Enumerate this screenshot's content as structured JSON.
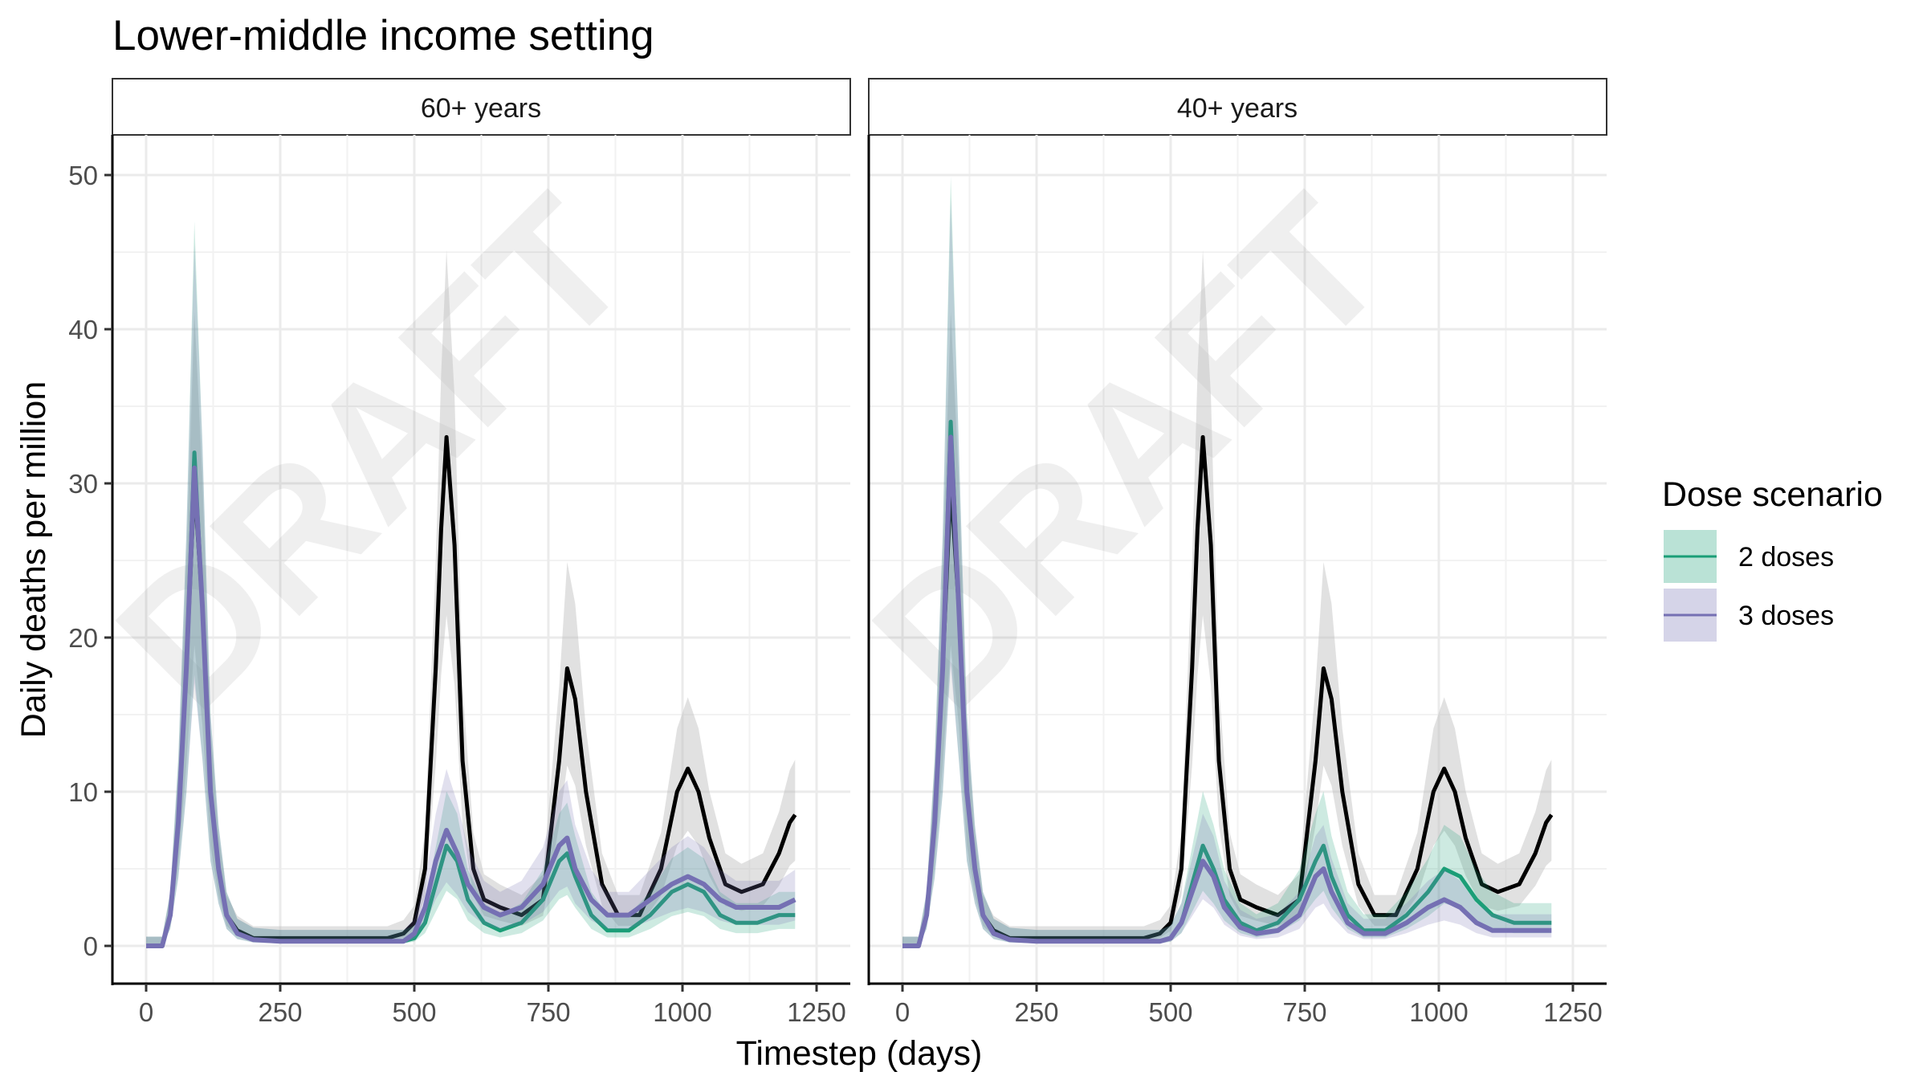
{
  "figure": {
    "title": "Lower-middle income setting",
    "watermark": "DRAFT",
    "colors": {
      "baseline": "#000000",
      "baseline_band": "#bdbdbd",
      "two_doses": "#1b9e77",
      "three_doses": "#7570b3"
    }
  },
  "legend": {
    "title": "Dose scenario",
    "items": [
      {
        "label": "2 doses",
        "color": "#1b9e77"
      },
      {
        "label": "3 doses",
        "color": "#7570b3"
      }
    ]
  },
  "chart_data": {
    "type": "line",
    "title": "Lower-middle income setting",
    "xlabel": "Timestep (days)",
    "ylabel": "Daily deaths per million",
    "xlim": [
      0,
      1250
    ],
    "ylim": [
      0,
      50
    ],
    "x_ticks": [
      0,
      250,
      500,
      750,
      1000,
      1250
    ],
    "y_ticks": [
      0,
      10,
      20,
      30,
      40,
      50
    ],
    "grid": true,
    "legend_position": "right",
    "panels": [
      {
        "label": "60+ years",
        "series": [
          {
            "key": "baseline",
            "x": [
              0,
              30,
              45,
              60,
              75,
              90,
              105,
              120,
              135,
              150,
              170,
              200,
              250,
              300,
              350,
              400,
              450,
              480,
              500,
              520,
              540,
              550,
              560,
              575,
              590,
              610,
              630,
              660,
              700,
              740,
              770,
              785,
              800,
              820,
              850,
              880,
              920,
              960,
              990,
              1010,
              1030,
              1050,
              1080,
              1110,
              1150,
              1180,
              1200,
              1210
            ],
            "y": [
              0,
              0,
              2,
              8,
              18,
              30,
              22,
              10,
              5,
              2,
              1,
              0.5,
              0.5,
              0.5,
              0.5,
              0.5,
              0.5,
              0.8,
              1.5,
              5,
              18,
              27,
              33,
              26,
              12,
              5,
              3,
              2.5,
              2,
              3,
              12,
              18,
              16,
              10,
              4,
              2,
              2,
              5,
              10,
              11.5,
              10,
              7,
              4,
              3.5,
              4,
              6,
              8,
              8.5
            ]
          },
          {
            "key": "two_doses",
            "x": [
              0,
              30,
              45,
              60,
              75,
              90,
              105,
              120,
              135,
              150,
              170,
              200,
              250,
              300,
              350,
              400,
              450,
              480,
              500,
              520,
              540,
              560,
              580,
              600,
              630,
              660,
              700,
              740,
              770,
              785,
              800,
              830,
              860,
              900,
              940,
              980,
              1010,
              1040,
              1070,
              1100,
              1140,
              1180,
              1210
            ],
            "y": [
              0,
              0,
              2,
              8,
              18,
              32,
              22,
              10,
              5,
              2,
              0.8,
              0.4,
              0.3,
              0.3,
              0.3,
              0.3,
              0.3,
              0.3,
              0.5,
              1.5,
              4,
              6.5,
              5.5,
              3,
              1.5,
              1,
              1.5,
              3,
              5.5,
              6,
              4.5,
              2,
              1,
              1,
              2,
              3.5,
              4,
              3.5,
              2,
              1.5,
              1.5,
              2,
              2
            ]
          },
          {
            "key": "three_doses",
            "x": [
              0,
              30,
              45,
              60,
              75,
              90,
              105,
              120,
              135,
              150,
              170,
              200,
              250,
              300,
              350,
              400,
              450,
              480,
              500,
              520,
              540,
              560,
              580,
              600,
              630,
              660,
              700,
              740,
              770,
              785,
              800,
              830,
              860,
              900,
              940,
              980,
              1010,
              1040,
              1070,
              1100,
              1140,
              1180,
              1210
            ],
            "y": [
              0,
              0,
              2,
              8,
              18,
              31,
              22,
              10,
              5,
              2,
              0.8,
              0.4,
              0.3,
              0.3,
              0.3,
              0.3,
              0.3,
              0.3,
              0.8,
              2.5,
              5.5,
              7.5,
              6,
              4,
              2.5,
              2,
              2.5,
              4,
              6.5,
              7,
              5,
              3,
              2,
              2,
              3,
              4,
              4.5,
              4,
              3,
              2.5,
              2.5,
              2.5,
              3
            ]
          }
        ]
      },
      {
        "label": "40+ years",
        "series": [
          {
            "key": "baseline",
            "x": [
              0,
              30,
              45,
              60,
              75,
              90,
              105,
              120,
              135,
              150,
              170,
              200,
              250,
              300,
              350,
              400,
              450,
              480,
              500,
              520,
              540,
              550,
              560,
              575,
              590,
              610,
              630,
              660,
              700,
              740,
              770,
              785,
              800,
              820,
              850,
              880,
              920,
              960,
              990,
              1010,
              1030,
              1050,
              1080,
              1110,
              1150,
              1180,
              1200,
              1210
            ],
            "y": [
              0,
              0,
              2,
              8,
              18,
              30,
              22,
              10,
              5,
              2,
              1,
              0.5,
              0.5,
              0.5,
              0.5,
              0.5,
              0.5,
              0.8,
              1.5,
              5,
              18,
              27,
              33,
              26,
              12,
              5,
              3,
              2.5,
              2,
              3,
              12,
              18,
              16,
              10,
              4,
              2,
              2,
              5,
              10,
              11.5,
              10,
              7,
              4,
              3.5,
              4,
              6,
              8,
              8.5
            ]
          },
          {
            "key": "two_doses",
            "x": [
              0,
              30,
              45,
              60,
              75,
              90,
              105,
              120,
              135,
              150,
              170,
              200,
              250,
              300,
              350,
              400,
              450,
              480,
              500,
              520,
              540,
              560,
              580,
              600,
              630,
              660,
              700,
              740,
              770,
              785,
              800,
              830,
              860,
              900,
              940,
              980,
              1010,
              1040,
              1070,
              1100,
              1140,
              1180,
              1210
            ],
            "y": [
              0,
              0,
              2,
              8,
              18,
              34,
              22,
              10,
              5,
              2,
              0.8,
              0.4,
              0.3,
              0.3,
              0.3,
              0.3,
              0.3,
              0.3,
              0.5,
              1.5,
              4,
              6.5,
              5,
              3,
              1.5,
              1,
              1.5,
              3,
              5.5,
              6.5,
              4.5,
              2,
              1,
              1,
              2,
              3.5,
              5,
              4.5,
              3,
              2,
              1.5,
              1.5,
              1.5
            ]
          },
          {
            "key": "three_doses",
            "x": [
              0,
              30,
              45,
              60,
              75,
              90,
              105,
              120,
              135,
              150,
              170,
              200,
              250,
              300,
              350,
              400,
              450,
              480,
              500,
              520,
              540,
              560,
              580,
              600,
              630,
              660,
              700,
              740,
              770,
              785,
              800,
              830,
              860,
              900,
              940,
              980,
              1010,
              1040,
              1070,
              1100,
              1140,
              1180,
              1210
            ],
            "y": [
              0,
              0,
              2,
              8,
              18,
              33,
              22,
              10,
              5,
              2,
              0.8,
              0.4,
              0.3,
              0.3,
              0.3,
              0.3,
              0.3,
              0.3,
              0.5,
              1.5,
              3.5,
              5.5,
              4.5,
              2.5,
              1.2,
              0.8,
              1,
              2,
              4.5,
              5,
              3.5,
              1.5,
              0.8,
              0.8,
              1.5,
              2.5,
              3,
              2.5,
              1.5,
              1,
              1,
              1,
              1
            ]
          }
        ]
      }
    ]
  }
}
